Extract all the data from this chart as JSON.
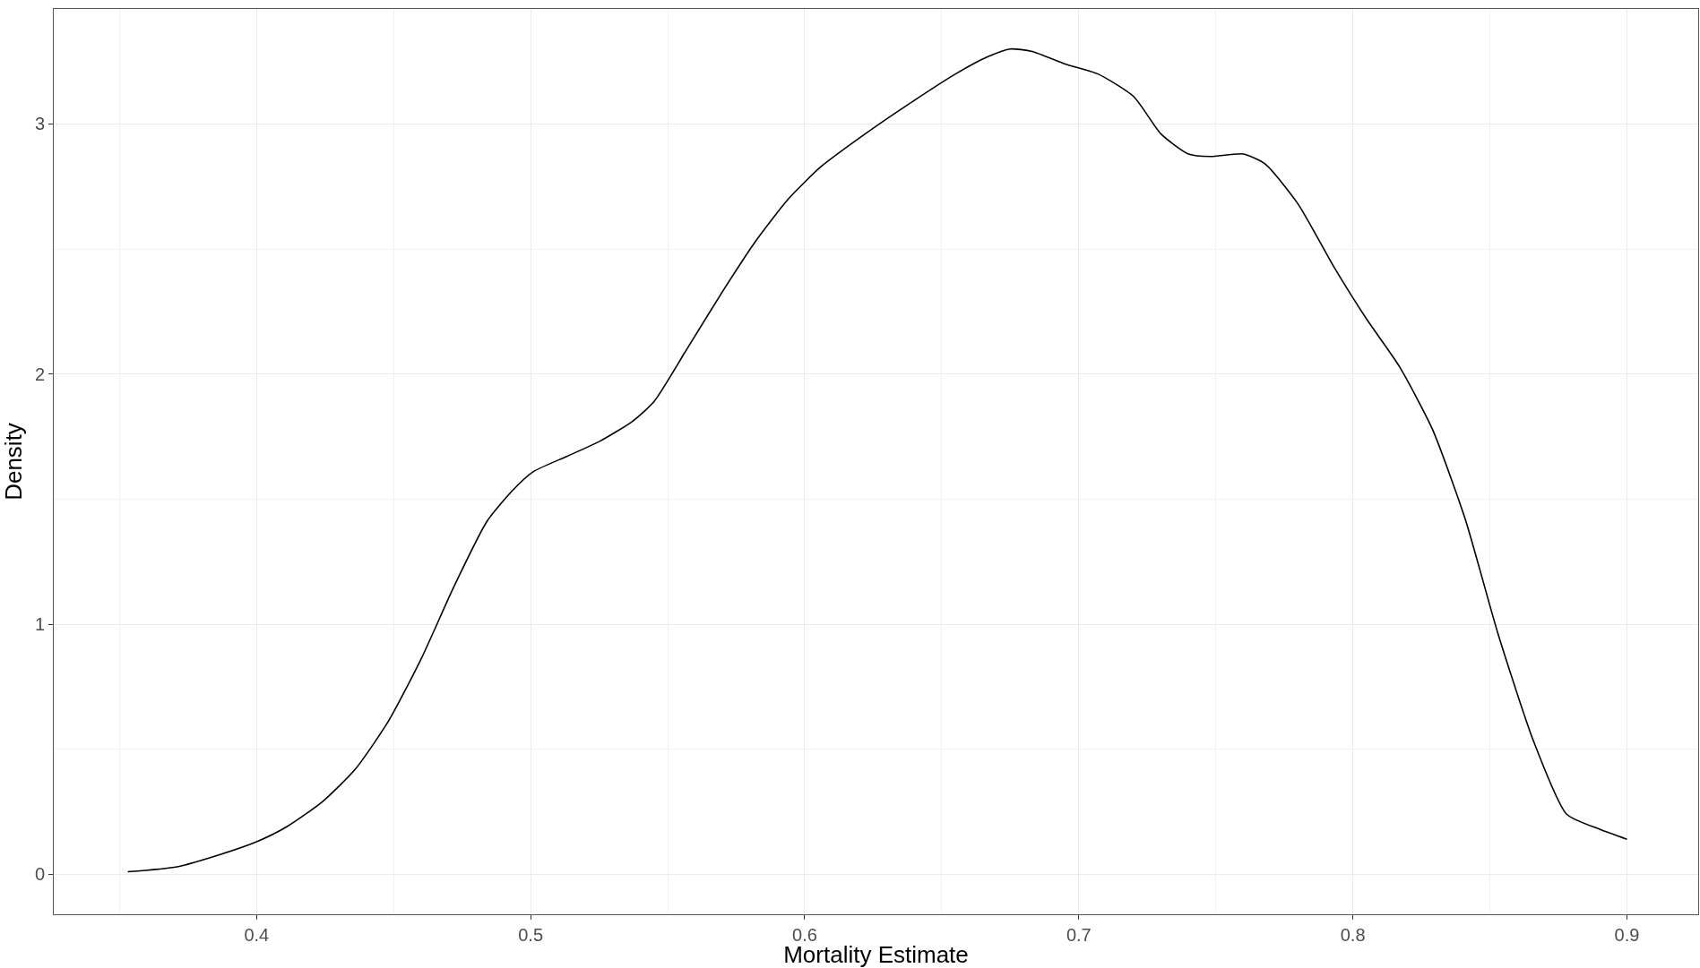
{
  "chart_data": {
    "type": "line",
    "xlabel": "Mortality Estimate",
    "ylabel": "Density",
    "x": [
      0.353,
      0.371,
      0.387,
      0.4,
      0.411,
      0.424,
      0.436,
      0.448,
      0.46,
      0.472,
      0.484,
      0.493,
      0.501,
      0.513,
      0.525,
      0.537,
      0.545,
      0.557,
      0.57,
      0.582,
      0.594,
      0.606,
      0.622,
      0.638,
      0.655,
      0.667,
      0.675,
      0.683,
      0.695,
      0.707,
      0.72,
      0.73,
      0.74,
      0.748,
      0.76,
      0.768,
      0.78,
      0.793,
      0.805,
      0.817,
      0.829,
      0.841,
      0.853,
      0.866,
      0.878,
      0.89,
      0.9
    ],
    "series": [
      {
        "color": "#000000",
        "values": [
          0.01,
          0.03,
          0.08,
          0.13,
          0.19,
          0.29,
          0.42,
          0.61,
          0.86,
          1.15,
          1.41,
          1.53,
          1.61,
          1.67,
          1.73,
          1.81,
          1.89,
          2.1,
          2.33,
          2.53,
          2.7,
          2.83,
          2.96,
          3.08,
          3.2,
          3.27,
          3.3,
          3.29,
          3.24,
          3.2,
          3.11,
          2.96,
          2.88,
          2.87,
          2.88,
          2.84,
          2.68,
          2.43,
          2.22,
          2.03,
          1.78,
          1.42,
          0.96,
          0.53,
          0.24,
          0.18,
          0.14
        ]
      }
    ],
    "xlim": [
      0.326,
      0.926
    ],
    "ylim": [
      -0.16,
      3.46
    ],
    "xticks": [
      {
        "value": 0.35,
        "label": null
      },
      0.4,
      {
        "value": 0.45,
        "label": null
      },
      0.5,
      {
        "value": 0.55,
        "label": null
      },
      0.6,
      {
        "value": 0.65,
        "label": null
      },
      0.7,
      {
        "value": 0.75,
        "label": null
      },
      0.8,
      {
        "value": 0.85,
        "label": null
      },
      0.9
    ],
    "yticks": [
      0,
      {
        "value": 0.5,
        "label": null
      },
      1,
      {
        "value": 1.5,
        "label": null
      },
      2,
      {
        "value": 2.5,
        "label": null
      },
      3
    ],
    "grid": true
  }
}
